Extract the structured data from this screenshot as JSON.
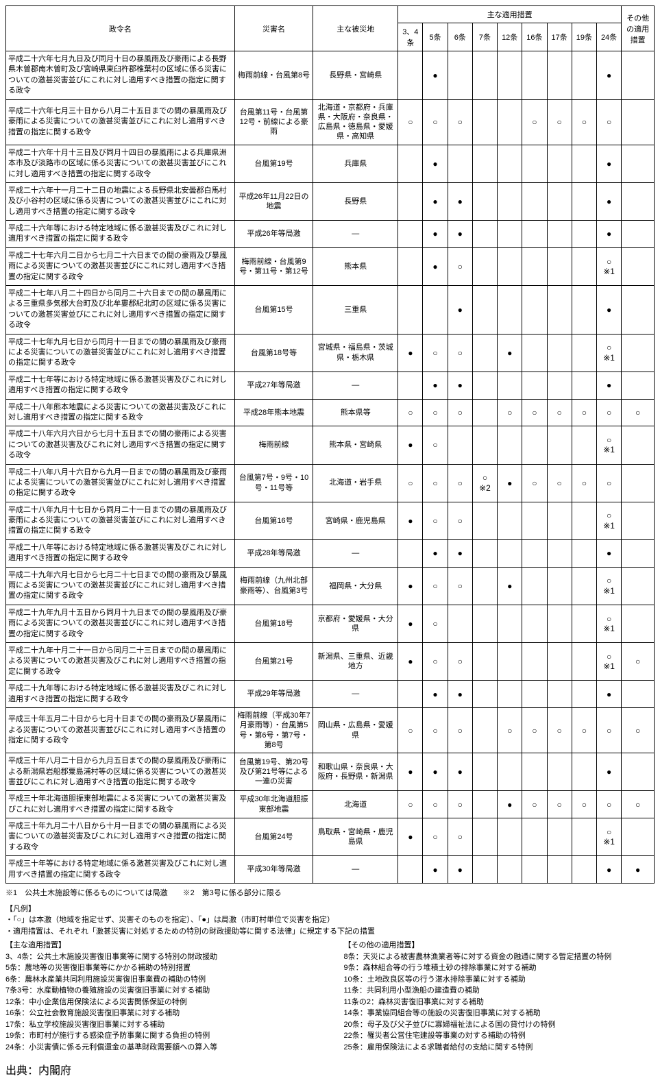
{
  "headers": {
    "name": "政令名",
    "disaster": "災害名",
    "area": "主な被災地",
    "mainMeasures": "主な適用措置",
    "cols": [
      "3、4条",
      "5条",
      "6条",
      "7条",
      "12条",
      "16条",
      "17条",
      "19条",
      "24条"
    ],
    "other": "その他の適用措置"
  },
  "marks": {
    "filled": "●",
    "open": "○"
  },
  "notes": {
    "n1": "○※1",
    "n2": "○※2"
  },
  "rows": [
    {
      "name": "平成二十六年七月九日及び同月十日の暴風雨及び豪雨による長野県木曽郡南木曽町及び宮崎県東臼杵郡椎葉村の区域に係る災害についての激甚災害並びにこれに対し適用すべき措置の指定に関する政令",
      "disaster": "梅雨前線・台風第8号",
      "area": "長野県・宮崎県",
      "c": [
        "",
        "●",
        "",
        "",
        "",
        "",
        "",
        "",
        "●"
      ],
      "other": ""
    },
    {
      "name": "平成二十六年七月三十日から八月二十五日までの間の暴風雨及び豪雨による災害についての激甚災害並びにこれに対し適用すべき措置の指定に関する政令",
      "disaster": "台風第11号・台風第12号・前線による豪雨",
      "area": "北海道・京都府・兵庫県・大阪府・奈良県・広島県・徳島県・愛媛県・高知県",
      "c": [
        "○",
        "○",
        "○",
        "",
        "",
        "○",
        "○",
        "○",
        "○"
      ],
      "other": ""
    },
    {
      "name": "平成二十六年十月十三日及び同月十四日の暴風雨による兵庫県洲本市及び淡路市の区域に係る災害についての激甚災害並びにこれに対し適用すべき措置の指定に関する政令",
      "disaster": "台風第19号",
      "area": "兵庫県",
      "c": [
        "",
        "●",
        "",
        "",
        "",
        "",
        "",
        "",
        "●"
      ],
      "other": ""
    },
    {
      "name": "平成二十六年十一月二十二日の地震による長野県北安曇郡白馬村及び小谷村の区域に係る災害についての激甚災害並びにこれに対し適用すべき措置の指定に関する政令",
      "disaster": "平成26年11月22日の地震",
      "area": "長野県",
      "c": [
        "",
        "●",
        "●",
        "",
        "",
        "",
        "",
        "",
        "●"
      ],
      "other": ""
    },
    {
      "name": "平成二十六年等における特定地域に係る激甚災害及びこれに対し適用すべき措置の指定に関する政令",
      "disaster": "平成26年等局激",
      "area": "—",
      "c": [
        "",
        "●",
        "●",
        "",
        "",
        "",
        "",
        "",
        "●"
      ],
      "other": ""
    },
    {
      "name": "平成二十七年六月二日から七月二十六日までの間の豪雨及び暴風雨による災害についての激甚災害並びにこれに対し適用すべき措置の指定に関する政令",
      "disaster": "梅雨前線・台風第9号・第11号・第12号",
      "area": "熊本県",
      "c": [
        "",
        "●",
        "○",
        "",
        "",
        "",
        "",
        "",
        "○※1"
      ],
      "other": ""
    },
    {
      "name": "平成二十七年八月二十四日から同月二十六日までの間の暴風雨による三重県多気郡大台町及び北牟婁郡紀北町の区域に係る災害についての激甚災害並びにこれに対し適用すべき措置の指定に関する政令",
      "disaster": "台風第15号",
      "area": "三重県",
      "c": [
        "",
        "",
        "●",
        "",
        "",
        "",
        "",
        "",
        "●"
      ],
      "other": ""
    },
    {
      "name": "平成二十七年九月七日から同月十一日までの間の暴風雨及び豪雨による災害についての激甚災害並びにこれに対し適用すべき措置の指定に関する政令",
      "disaster": "台風第18号等",
      "area": "宮城県・福島県・茨城県・栃木県",
      "c": [
        "●",
        "○",
        "○",
        "",
        "●",
        "",
        "",
        "",
        "○※1"
      ],
      "other": ""
    },
    {
      "name": "平成二十七年等における特定地域に係る激甚災害及びこれに対し適用すべき措置の指定に関する政令",
      "disaster": "平成27年等局激",
      "area": "—",
      "c": [
        "",
        "●",
        "●",
        "",
        "",
        "",
        "",
        "",
        "●"
      ],
      "other": ""
    },
    {
      "name": "平成二十八年熊本地震による災害についての激甚災害及びこれに対し適用すべき措置の指定に関する政令",
      "disaster": "平成28年熊本地震",
      "area": "熊本県等",
      "c": [
        "○",
        "○",
        "○",
        "",
        "○",
        "○",
        "○",
        "○",
        "○"
      ],
      "other": "○"
    },
    {
      "name": "平成二十八年六月六日から七月十五日までの間の豪雨による災害についての激甚災害及びこれに対し適用すべき措置の指定に関する政令",
      "disaster": "梅雨前線",
      "area": "熊本県・宮崎県",
      "c": [
        "●",
        "○",
        "",
        "",
        "",
        "",
        "",
        "",
        "○※1"
      ],
      "other": ""
    },
    {
      "name": "平成二十八年八月十六日から九月一日までの間の暴風雨及び豪雨による災害についての激甚災害並びにこれに対し適用すべき措置の指定に関する政令",
      "disaster": "台風第7号・9号・10号・11号等",
      "area": "北海道・岩手県",
      "c": [
        "○",
        "○",
        "○",
        "○※2",
        "●",
        "○",
        "○",
        "○",
        "○"
      ],
      "other": ""
    },
    {
      "name": "平成二十八年九月十七日から同月二十一日までの間の暴風雨及び豪雨による災害についての激甚災害並びにこれに対し適用すべき措置の指定に関する政令",
      "disaster": "台風第16号",
      "area": "宮崎県・鹿児島県",
      "c": [
        "●",
        "○",
        "○",
        "",
        "",
        "",
        "",
        "",
        "○※1"
      ],
      "other": ""
    },
    {
      "name": "平成二十八年等における特定地域に係る激甚災害及びこれに対し適用すべき措置の指定に関する政令",
      "disaster": "平成28年等局激",
      "area": "—",
      "c": [
        "",
        "●",
        "●",
        "",
        "",
        "",
        "",
        "",
        "●"
      ],
      "other": ""
    },
    {
      "name": "平成二十九年六月七日から七月二十七日までの間の豪雨及び暴風雨による災害についての激甚災害並びにこれに対し適用すべき措置の指定に関する政令",
      "disaster": "梅雨前線（九州北部豪雨等）、台風第3号",
      "area": "福岡県・大分県",
      "c": [
        "●",
        "○",
        "○",
        "",
        "●",
        "",
        "",
        "",
        "○※1"
      ],
      "other": ""
    },
    {
      "name": "平成二十九年九月十五日から同月十九日までの間の暴風雨及び豪雨による災害についての激甚災害並びにこれに対し適用すべき措置の指定に関する政令",
      "disaster": "台風第18号",
      "area": "京都府・愛媛県・大分県",
      "c": [
        "●",
        "○",
        "",
        "",
        "",
        "",
        "",
        "",
        "○※1"
      ],
      "other": ""
    },
    {
      "name": "平成二十九年十月二十一日から同月二十三日までの間の暴風雨による災害についての激甚災害及びこれに対し適用すべき措置の指定に関する政令",
      "disaster": "台風第21号",
      "area": "新潟県、三重県、近畿地方",
      "c": [
        "●",
        "○",
        "○",
        "",
        "",
        "",
        "",
        "",
        "○※1"
      ],
      "other": "○"
    },
    {
      "name": "平成二十九年等における特定地域に係る激甚災害及びこれに対し適用すべき措置の指定に関する政令",
      "disaster": "平成29年等局激",
      "area": "—",
      "c": [
        "",
        "●",
        "●",
        "",
        "",
        "",
        "",
        "",
        "●"
      ],
      "other": ""
    },
    {
      "name": "平成三十年五月二十日から七月十日までの間の豪雨及び暴風雨による災害についての激甚災害並びにこれに対し適用すべき措置の指定に関する政令",
      "disaster": "梅雨前線（平成30年7月豪雨等）・台風第5号・第6号・第7号・第8号",
      "area": "岡山県・広島県・愛媛県",
      "c": [
        "○",
        "○",
        "○",
        "",
        "○",
        "○",
        "○",
        "○",
        "○"
      ],
      "other": "○"
    },
    {
      "name": "平成三十年八月二十日から九月五日までの間の暴風雨及び豪雨による新潟県岩船郡粟島浦村等の区域に係る災害についての激甚災害並びにこれに対し適用すべき措置の指定に関する政令",
      "disaster": "台風第19号、第20号及び第21号等による一連の災害",
      "area": "和歌山県・奈良県・大阪府・長野県・新潟県",
      "c": [
        "●",
        "●",
        "●",
        "",
        "",
        "",
        "",
        "",
        "●"
      ],
      "other": ""
    },
    {
      "name": "平成三十年北海道胆振東部地震による災害についての激甚災害及びこれに対し適用すべき措置の指定に関する政令",
      "disaster": "平成30年北海道胆振東部地震",
      "area": "北海道",
      "c": [
        "○",
        "○",
        "○",
        "",
        "●",
        "○",
        "○",
        "○",
        "○"
      ],
      "other": "○"
    },
    {
      "name": "平成三十年九月二十八日から十月一日までの間の暴風雨による災害についての激甚災害及びこれに対し適用すべき措置の指定に関する政令",
      "disaster": "台風第24号",
      "area": "鳥取県・宮崎県・鹿児島県",
      "c": [
        "●",
        "○",
        "○",
        "",
        "",
        "",
        "",
        "",
        "○※1"
      ],
      "other": ""
    },
    {
      "name": "平成三十年等における特定地域に係る激甚災害及びこれに対し適用すべき措置の指定に関する政令",
      "disaster": "平成30年等局激",
      "area": "—",
      "c": [
        "",
        "●",
        "●",
        "",
        "",
        "",
        "",
        "",
        "●"
      ],
      "other": "●"
    }
  ],
  "footnotes": {
    "line1": "※1　公共土木施設等に係るものについては局激　　※2　第3号に係る部分に限る",
    "legendTitle": "【凡例】",
    "legend1": "・「○」は本激（地域を指定せず、災害そのものを指定）、「●」は局激（市町村単位で災害を指定）",
    "legend2": "・適用措置は、それぞれ「激甚災害に対処するための特別の財政援助等に関する法律」に規定する下記の措置",
    "mainTitle": "【主な適用措置】",
    "mainList": [
      "3、4条：公共土木施設災害復旧事業等に関する特別の財政援助",
      "5条：農地等の災害復旧事業等にかかる補助の特別措置",
      "6条：農林水産業共同利用施設災害復旧事業費の補助の特例",
      "7条3号：水産動植物の養殖施設の災害復旧事業に対する補助",
      "12条：中小企業信用保険法による災害関係保証の特例",
      "16条：公立社会教育施設災害復旧事業に対する補助",
      "17条：私立学校施設災害復旧事業に対する補助",
      "19条：市町村が施行する感染症予防事業に関する負担の特例",
      "24条：小災害債に係る元利償還金の基準財政需要額への算入等"
    ],
    "otherTitle": "【その他の適用措置】",
    "otherList": [
      "8条：天災による被害農林漁業者等に対する資金の融通に関する暫定措置の特例",
      "9条：森林組合等の行う堆積土砂の排除事業に対する補助",
      "10条：土地改良区等の行う湛水排除事業に対する補助",
      "11条：共同利用小型漁船の建造費の補助",
      "11条の2：森林災害復旧事業に対する補助",
      "14条：事業協同組合等の施設の災害復旧事業に対する補助",
      "20条：母子及び父子並びに寡婦福祉法による国の貸付けの特例",
      "22条：罹災者公営住宅建設等事業の対する補助の特例",
      "25条：雇用保険法による求職者給付の支給に関する特例"
    ]
  },
  "source": "出典：内閣府"
}
